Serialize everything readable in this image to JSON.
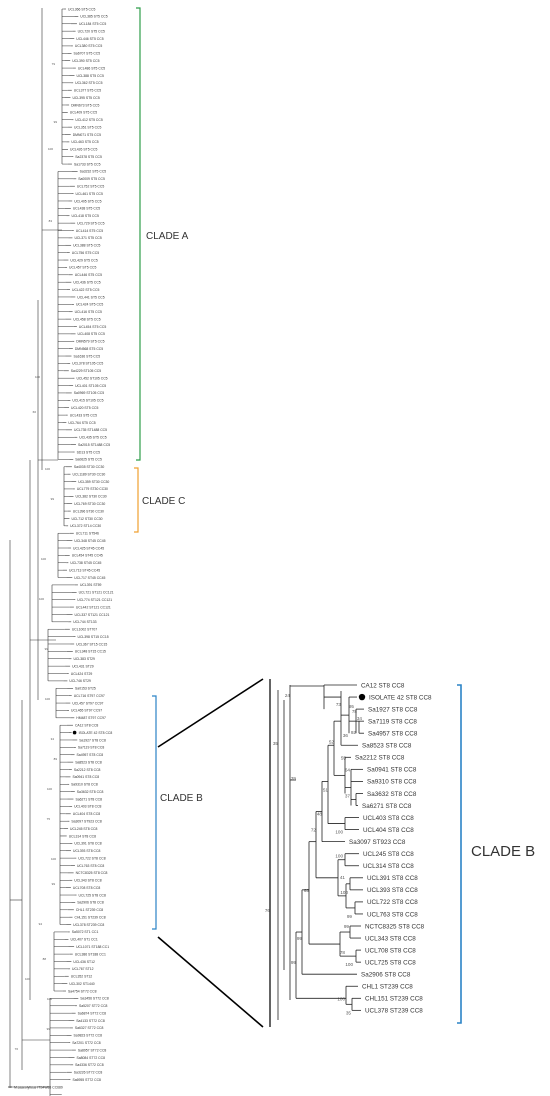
{
  "colors": {
    "branch": "#333333",
    "clade_a": "#2e9e4a",
    "clade_c": "#f0a030",
    "clade_b": "#2b83c6",
    "label": "#333333",
    "bootstrap": "#555555"
  },
  "clade_labels": {
    "a": "CLADE A",
    "b": "CLADE B",
    "c": "CLADE C",
    "b_zoom": "CLADE B"
  },
  "main_tree": {
    "taxa": [
      "UCL366 ST5 CC5",
      "UCL385 ST5 CC5",
      "UCL184 ST5 CC5",
      "UCL720 ST5 CC5",
      "UCL446 ST5 CC5",
      "UCL380 ST5 CC5",
      "Sa6707 ST5 CC5",
      "UCL390 ST5 CC5",
      "UCL486 ST5 CC5",
      "UCL388 ST5 CC5",
      "UCL362 ST5 CC5",
      "UCL377 ST5 CC5",
      "UCL395 ST5 CC5",
      "DMN673 ST5 CC5",
      "UCL409 ST5 CC5",
      "UCL412 ST5 CC5",
      "UCL351 ST5 CC5",
      "DMN071 ST5 CC5",
      "UCL463 ST5 CC5",
      "UCL426 ST5 CC5",
      "Sa2378 ST5 CC5",
      "Sa1733 ST5 CC5",
      "Sa3232 ST5 CC5",
      "Sa0009 ST5 CC5",
      "UCL752 ST5 CC5",
      "UCL461 ST5 CC5",
      "UCL405 ST5 CC5",
      "UCL438 ST5 CC5",
      "UCL418 ST5 CC5",
      "UCL729 ST5 CC5",
      "UCL414 ST5 CC5",
      "UCL371 ST5 CC5",
      "UCL388 ST5 CC5",
      "UCL756 ST5 CC5",
      "UCL429 ST5 CC5",
      "UCL457 ST5 CC5",
      "UCL446 ST5 CC5",
      "UCL436 ST5 CC5",
      "UCL422 ST5 CC5",
      "UCL441 ST5 CC5",
      "UCL424 ST5 CC5",
      "UCL416 ST5 CC5",
      "UCL458 ST5 CC5",
      "UCL454 ST5 CC5",
      "UCL408 ST5 CC5",
      "DMN579 ST5 CC5",
      "DMN568 ST5 CC5",
      "Sa1636 ST5 CC5",
      "UCL378 ST105 CC5",
      "Sa4229 ST105 CC5",
      "UCL452 ST105 CC5",
      "UCL401 ST105 CC5",
      "Sa0969 ST105 CC5",
      "UCL415 ST105 CC5",
      "UCL420 ST5 CC5",
      "UCL433 ST5 CC5",
      "UCL764 ST5 CC5",
      "UCL735 ST1488 CC5",
      "UCL435 ST5 CC5",
      "Sa2015 ST1488 CC5",
      "SD13 ST5 CC5",
      "Sa0625 ST5 CC5",
      "Sa4035 ST30 CC30",
      "UCL1189 ST30 CC30",
      "UCL359 ST30 CC30",
      "UCL779 ST30 CC30",
      "UCL382 ST30 CC30",
      "UCL769 ST30 CC30",
      "UCL396 ST30 CC30",
      "UCL712 ST30 CC30",
      "UCL372 ST14 CC30",
      "UCL711 ST546",
      "UCL348 ST45 CC45",
      "UCL425 ST45 CC45",
      "UCL454 ST45 CC45",
      "UCL738 ST45 CC45",
      "UCL713 ST45 CC45",
      "UCL717 ST45 CC45",
      "UCL391 ST59",
      "UCL721 ST121 CC121",
      "UCL774 ST121 CC121",
      "UCL442 ST121 CC121",
      "UCL337 ST121 CC121",
      "UCL744 ST133",
      "UCL1002 ST707",
      "UCL398 ST15 CC15",
      "UCL367 ST15 CC15",
      "UCL348 ST15 CC15",
      "UCL383 ST29",
      "UCL431 ST29",
      "UCL424 ST29",
      "UCL746 ST29",
      "Sa0153 ST25",
      "UCL716 ST97 CC97",
      "UCL457 ST97 CC97",
      "UCL465 ST97 CC97",
      "HM487 ST97 CC97",
      "CA12 ST8 CC8",
      "ISOLATE 42 ST8 CC8",
      "Sa1927 ST8 CC8",
      "Sa7119 ST8 CC8",
      "Sa4957 ST8 CC8",
      "Sa8523 ST8 CC8",
      "Sa2212 ST8 CC8",
      "Sa0941 ST8 CC8",
      "Sa9310 ST8 CC8",
      "Sa3632 ST8 CC8",
      "Sa6271 ST8 CC8",
      "UCL403 ST8 CC8",
      "UCL404 ST8 CC8",
      "Sa3097 ST923 CC8",
      "UCL245 ST8 CC8",
      "UCL314 ST8 CC8",
      "UCL391 ST8 CC8",
      "UCL393 ST8 CC8",
      "UCL722 ST8 CC8",
      "UCL763 ST8 CC8",
      "NCTC8325 ST8 CC8",
      "UCL343 ST8 CC8",
      "UCL708 ST8 CC8",
      "UCL725 ST8 CC8",
      "Sa2906 ST8 CC8",
      "CHL1 ST239 CC8",
      "CHL151 ST239 CC8",
      "UCL378 ST239 CC8",
      "Sa5072 ST1 CC1",
      "UCL407 ST1 CC1",
      "UCL1071 ST188 CC1",
      "UCL386 ST188 CC1",
      "UCL436 ST12",
      "UCL767 ST12",
      "UCL352 ST12",
      "UCL302 ST1440",
      "Sa4754 ST72 CC8",
      "Sa3456 ST72 CC8",
      "Sa5207 ST72 CC8",
      "Sa6874 ST72 CC8",
      "Sa4133 ST72 CC8",
      "Sa6327 ST72 CC8",
      "Sa9823 ST72 CC8",
      "Sa7201 ST72 CC8",
      "Sa8957 ST72 CC8",
      "Sa8084 ST72 CC8",
      "Sa4336 ST72 CC8",
      "Sa3226 ST72 CC8",
      "Sa6955 ST72 CC8",
      "M.caseolyticus ITS4W83 CC689"
    ],
    "bootstrap_values": [
      "79",
      "99",
      "100",
      "83",
      "100",
      "66",
      "100",
      "99",
      "100",
      "100",
      "99",
      "100",
      "34",
      "89",
      "100",
      "75",
      "100",
      "99",
      "94",
      "88",
      "100",
      "99",
      "100",
      "76"
    ]
  },
  "zoom_tree": {
    "taxa": [
      "CA12 ST8 CC8",
      "ISOLATE 42 ST8 CC8",
      "Sa1927 ST8 CC8",
      "Sa7119 ST8 CC8",
      "Sa4957 ST8 CC8",
      "Sa8523 ST8 CC8",
      "Sa2212 ST8 CC8",
      "Sa0941 ST8 CC8",
      "Sa9310 ST8 CC8",
      "Sa3632 ST8 CC8",
      "Sa6271 ST8 CC8",
      "UCL403 ST8 CC8",
      "UCL404 ST8 CC8",
      "Sa3097 ST923 CC8",
      "UCL245 ST8 CC8",
      "UCL314 ST8 CC8",
      "UCL391 ST8 CC8",
      "UCL393 ST8 CC8",
      "UCL722 ST8 CC8",
      "UCL763 ST8 CC8",
      "NCTC8325 ST8 CC8",
      "UCL343 ST8 CC8",
      "UCL708 ST8 CC8",
      "UCL725 ST8 CC8",
      "Sa2906 ST8 CC8",
      "CHL1 ST239 CC8",
      "CHL151 ST239 CC8",
      "UCL378 ST239 CC8"
    ],
    "bootstrap": {
      "n24": "24",
      "n39": "39",
      "n35": "35",
      "n76": "76",
      "n99a": "99",
      "n99b": "99",
      "n65": "65",
      "n72": "72",
      "n48": "48",
      "n51": "51",
      "n52": "52",
      "n73": "73",
      "n95": "95",
      "n78": "78",
      "n34": "34",
      "n92": "92",
      "n36": "36",
      "n55": "55",
      "n64": "64",
      "n37": "37",
      "n100a": "100",
      "n41": "41",
      "n100b": "100",
      "n100c": "100",
      "n99c": "99",
      "n78b": "78",
      "n100d": "100",
      "n35b": "35"
    }
  }
}
